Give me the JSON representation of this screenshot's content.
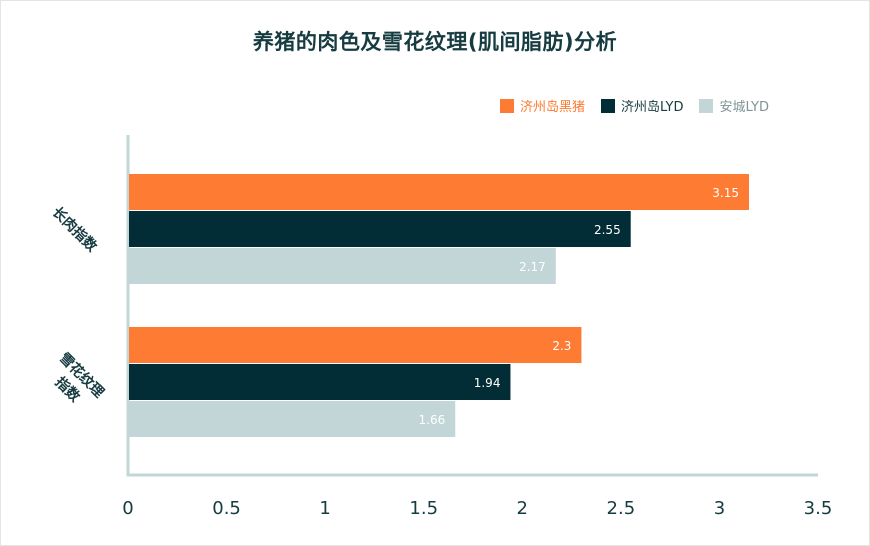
{
  "chart_data": {
    "type": "bar",
    "orientation": "horizontal",
    "title": "养猪的肉色及雪花纹理(肌间脂肪)分析",
    "categories": [
      "长肉指数",
      "雪花纹理指数"
    ],
    "category_lines": [
      [
        "长肉指数"
      ],
      [
        "雪花纹理",
        "指数"
      ]
    ],
    "series": [
      {
        "name": "济州岛黑猪",
        "values": [
          3.15,
          2.3
        ],
        "color": "#fd7b32",
        "label_color": "#ffffff"
      },
      {
        "name": "济州岛LYD",
        "values": [
          2.55,
          1.94
        ],
        "color": "#032d36",
        "label_color": "#ffffff"
      },
      {
        "name": "安城LYD",
        "values": [
          2.17,
          1.66
        ],
        "color": "#c3d6d7",
        "label_color": "#ffffff"
      }
    ],
    "x_ticks": [
      "0",
      "0.5",
      "1",
      "1.5",
      "2",
      "2.5",
      "3",
      "3.5"
    ],
    "xlim": [
      0,
      3.5
    ],
    "legend_position": "top-right",
    "grid": false,
    "axis_color": "#c3d6d7",
    "tick_label_color": "#163b40"
  }
}
